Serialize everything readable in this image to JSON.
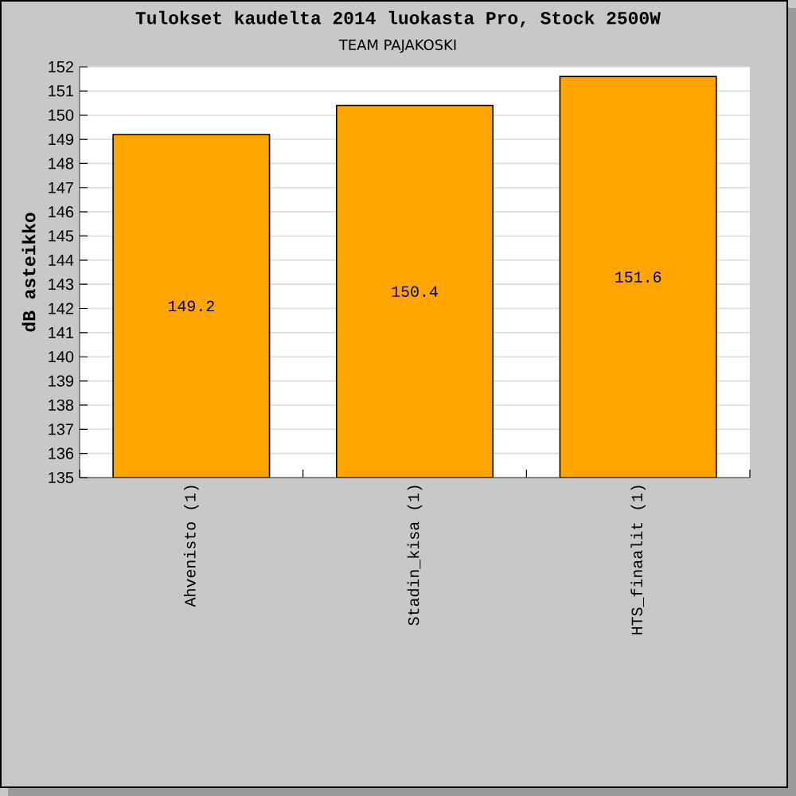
{
  "chart_data": {
    "type": "bar",
    "title": "Tulokset kaudelta 2014 luokasta Pro, Stock 2500W",
    "subtitle": "TEAM PAJAKOSKI",
    "ylabel": "dB asteikko",
    "categories": [
      "Ahvenisto (1)",
      "Stadin_kisa (1)",
      "HTS_finaalit (1)"
    ],
    "values": [
      149.2,
      150.4,
      151.6
    ],
    "color": "#ffa500",
    "ylim": [
      135,
      152
    ],
    "yticks": [
      135,
      136,
      137,
      138,
      139,
      140,
      141,
      142,
      143,
      144,
      145,
      146,
      147,
      148,
      149,
      150,
      151,
      152
    ],
    "grid": "y",
    "data_labels": true
  }
}
